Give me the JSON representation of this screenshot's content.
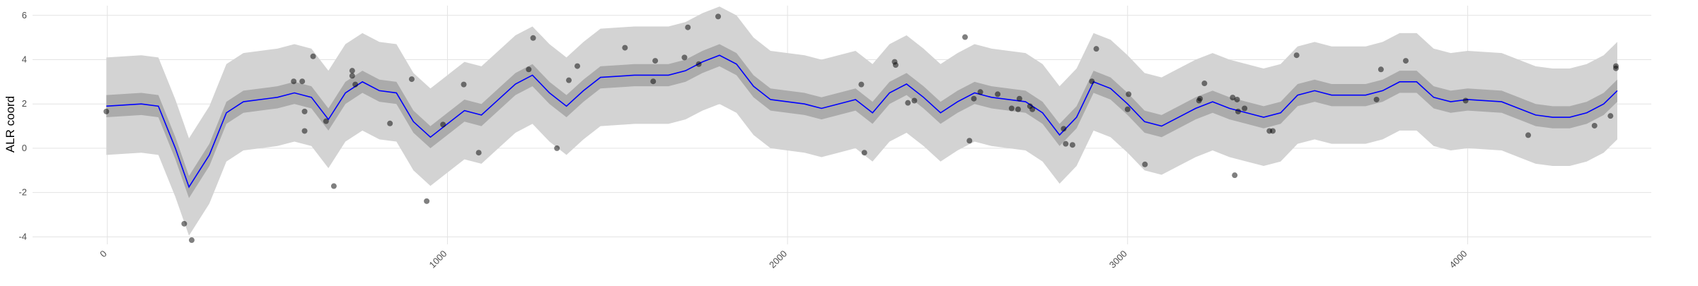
{
  "chart_data": {
    "type": "line",
    "ylabel": "ALR coord",
    "xlim": [
      -220,
      4540
    ],
    "ylim": [
      -4.34,
      6.44
    ],
    "xticks": [
      0,
      1000,
      2000,
      3000,
      4000
    ],
    "yticks": [
      -4,
      -2,
      0,
      2,
      4,
      6
    ],
    "grid": true,
    "x": [
      -3,
      100,
      150,
      200,
      240,
      300,
      350,
      400,
      500,
      550,
      600,
      650,
      700,
      750,
      800,
      850,
      900,
      950,
      1000,
      1050,
      1100,
      1150,
      1200,
      1250,
      1300,
      1350,
      1400,
      1450,
      1550,
      1650,
      1700,
      1750,
      1800,
      1850,
      1900,
      1950,
      2050,
      2100,
      2150,
      2200,
      2250,
      2300,
      2350,
      2400,
      2450,
      2500,
      2550,
      2600,
      2650,
      2700,
      2750,
      2800,
      2850,
      2900,
      2950,
      3000,
      3050,
      3100,
      3150,
      3200,
      3250,
      3300,
      3350,
      3400,
      3450,
      3500,
      3550,
      3600,
      3700,
      3750,
      3800,
      3850,
      3900,
      3950,
      4000,
      4100,
      4150,
      4200,
      4250,
      4300,
      4350,
      4400,
      4440
    ],
    "bands": [
      {
        "color": "#d3d3d3",
        "lower": [
          -0.3,
          -0.2,
          -0.3,
          -2.2,
          -3.95,
          -2.5,
          -0.6,
          -0.1,
          0.1,
          0.3,
          0.1,
          -0.9,
          0.3,
          0.8,
          0.4,
          0.3,
          -1.0,
          -1.7,
          -1.1,
          -0.5,
          -0.7,
          0,
          0.7,
          1.1,
          0.3,
          -0.3,
          0.4,
          1.0,
          1.1,
          1.1,
          1.3,
          1.7,
          2.0,
          1.6,
          0.6,
          0,
          -0.2,
          -0.4,
          -0.2,
          0,
          -0.6,
          0.3,
          0.7,
          0.1,
          -0.6,
          -0.1,
          0.3,
          0.1,
          0,
          -0.1,
          -0.6,
          -1.6,
          -0.8,
          0.8,
          0.5,
          -0.2,
          -1.0,
          -1.2,
          -0.8,
          -0.4,
          -0.1,
          -0.4,
          -0.6,
          -0.8,
          -0.6,
          0.2,
          0.4,
          0.2,
          0.2,
          0.4,
          0.8,
          0.8,
          0.1,
          -0.1,
          0,
          -0.1,
          -0.4,
          -0.7,
          -0.8,
          -0.8,
          -0.6,
          -0.2,
          0.4
        ],
        "upper": [
          4.1,
          4.2,
          4.1,
          2.2,
          0.45,
          1.9,
          3.8,
          4.3,
          4.5,
          4.7,
          4.5,
          3.5,
          4.7,
          5.2,
          4.8,
          4.7,
          3.4,
          2.7,
          3.3,
          3.9,
          3.7,
          4.4,
          5.1,
          5.5,
          4.7,
          4.1,
          4.8,
          5.4,
          5.5,
          5.5,
          5.7,
          6.1,
          6.4,
          6.0,
          5.0,
          4.4,
          4.2,
          4.0,
          4.2,
          4.4,
          3.8,
          4.7,
          5.1,
          4.5,
          3.8,
          4.3,
          4.7,
          4.5,
          4.4,
          4.3,
          3.8,
          2.8,
          3.6,
          5.2,
          4.9,
          4.2,
          3.4,
          3.2,
          3.6,
          4.0,
          4.3,
          4.0,
          3.8,
          3.6,
          3.8,
          4.6,
          4.8,
          4.6,
          4.6,
          4.8,
          5.2,
          5.2,
          4.5,
          4.3,
          4.4,
          4.3,
          4.0,
          3.7,
          3.6,
          3.6,
          3.8,
          4.2,
          4.8
        ]
      },
      {
        "color": "#ababab",
        "lower": [
          1.4,
          1.5,
          1.4,
          -0.5,
          -2.25,
          -0.8,
          1.1,
          1.6,
          1.8,
          2.0,
          1.8,
          0.8,
          2.0,
          2.5,
          2.1,
          2.0,
          0.7,
          0,
          0.6,
          1.2,
          1.0,
          1.7,
          2.4,
          2.8,
          2.0,
          1.4,
          2.1,
          2.7,
          2.8,
          2.8,
          3.0,
          3.4,
          3.7,
          3.3,
          2.3,
          1.7,
          1.5,
          1.3,
          1.5,
          1.7,
          1.1,
          2.0,
          2.4,
          1.8,
          1.1,
          1.6,
          2.0,
          1.8,
          1.7,
          1.6,
          1.1,
          0.1,
          0.9,
          2.5,
          2.2,
          1.5,
          0.7,
          0.5,
          0.9,
          1.3,
          1.6,
          1.3,
          1.1,
          0.9,
          1.1,
          1.9,
          2.1,
          1.9,
          1.9,
          2.1,
          2.5,
          2.5,
          1.8,
          1.6,
          1.7,
          1.6,
          1.3,
          1.0,
          0.9,
          0.9,
          1.1,
          1.5,
          2.1
        ],
        "upper": [
          2.4,
          2.5,
          2.4,
          0.5,
          -1.25,
          0.2,
          2.1,
          2.6,
          2.8,
          3.0,
          2.8,
          1.8,
          3.0,
          3.5,
          3.1,
          3.0,
          1.7,
          1.0,
          1.6,
          2.2,
          2.0,
          2.7,
          3.4,
          3.8,
          3.0,
          2.4,
          3.1,
          3.7,
          3.8,
          3.8,
          4.0,
          4.4,
          4.7,
          4.3,
          3.3,
          2.7,
          2.5,
          2.3,
          2.5,
          2.7,
          2.1,
          3.0,
          3.4,
          2.8,
          2.1,
          2.6,
          3.0,
          2.8,
          2.7,
          2.6,
          2.1,
          1.1,
          1.9,
          3.5,
          3.2,
          2.5,
          1.7,
          1.5,
          1.9,
          2.3,
          2.6,
          2.3,
          2.1,
          1.9,
          2.1,
          2.9,
          3.1,
          2.9,
          2.9,
          3.1,
          3.5,
          3.5,
          2.8,
          2.6,
          2.7,
          2.6,
          2.3,
          2.0,
          1.9,
          1.9,
          2.1,
          2.5,
          3.1
        ]
      }
    ],
    "series": [
      {
        "color": "#0000ff",
        "values": [
          1.9,
          2.0,
          1.9,
          0,
          -1.75,
          -0.3,
          1.6,
          2.1,
          2.3,
          2.5,
          2.3,
          1.3,
          2.5,
          3.0,
          2.6,
          2.5,
          1.2,
          0.5,
          1.1,
          1.7,
          1.5,
          2.2,
          2.9,
          3.3,
          2.5,
          1.9,
          2.6,
          3.2,
          3.3,
          3.3,
          3.5,
          3.9,
          4.2,
          3.8,
          2.8,
          2.2,
          2.0,
          1.8,
          2.0,
          2.2,
          1.6,
          2.5,
          2.9,
          2.3,
          1.6,
          2.1,
          2.5,
          2.3,
          2.2,
          2.1,
          1.6,
          0.6,
          1.4,
          3.0,
          2.7,
          2.0,
          1.2,
          1.0,
          1.4,
          1.8,
          2.1,
          1.8,
          1.6,
          1.4,
          1.6,
          2.4,
          2.6,
          2.4,
          2.4,
          2.6,
          3.0,
          3.0,
          2.3,
          2.1,
          2.2,
          2.1,
          1.8,
          1.5,
          1.4,
          1.4,
          1.6,
          2.0,
          2.6
        ]
      }
    ],
    "points": {
      "color": "#000000",
      "x": [
        -3,
        226,
        248,
        548,
        573,
        580,
        580,
        605,
        643,
        666,
        720,
        720,
        729,
        831,
        895,
        939,
        987,
        1048,
        1092,
        1239,
        1252,
        1322,
        1357,
        1382,
        1522,
        1605,
        1611,
        1697,
        1707,
        1739,
        1796,
        2217,
        2226,
        2315,
        2318,
        2354,
        2373,
        2522,
        2535,
        2548,
        2567,
        2618,
        2659,
        2678,
        2682,
        2713,
        2720,
        2812,
        2818,
        2838,
        2895,
        2908,
        3003,
        3000,
        3051,
        3210,
        3213,
        3226,
        3309,
        3315,
        3322,
        3325,
        3344,
        3417,
        3427,
        3497,
        3732,
        3745,
        3818,
        3994,
        4178,
        4373,
        4420,
        4436,
        4436
      ],
      "y": [
        1.66,
        -3.41,
        -4.15,
        3.02,
        3.02,
        1.66,
        0.78,
        4.15,
        1.22,
        -1.71,
        3.5,
        3.27,
        2.88,
        1.12,
        3.12,
        -2.39,
        1.07,
        2.88,
        -0.2,
        3.56,
        4.98,
        0,
        3.07,
        3.71,
        4.54,
        3.02,
        3.95,
        4.1,
        5.46,
        3.8,
        5.95,
        2.88,
        -0.2,
        3.9,
        3.76,
        2.05,
        2.15,
        5.02,
        0.34,
        2.24,
        2.54,
        2.44,
        1.8,
        1.76,
        2.24,
        1.9,
        1.76,
        0.88,
        0.2,
        0.15,
        3.02,
        4.49,
        2.44,
        1.76,
        -0.73,
        2.15,
        2.24,
        2.93,
        2.29,
        -1.22,
        2.2,
        1.66,
        1.8,
        0.78,
        0.78,
        4.2,
        2.2,
        3.56,
        3.95,
        2.15,
        0.59,
        1.02,
        1.46,
        3.71,
        3.61
      ]
    }
  }
}
